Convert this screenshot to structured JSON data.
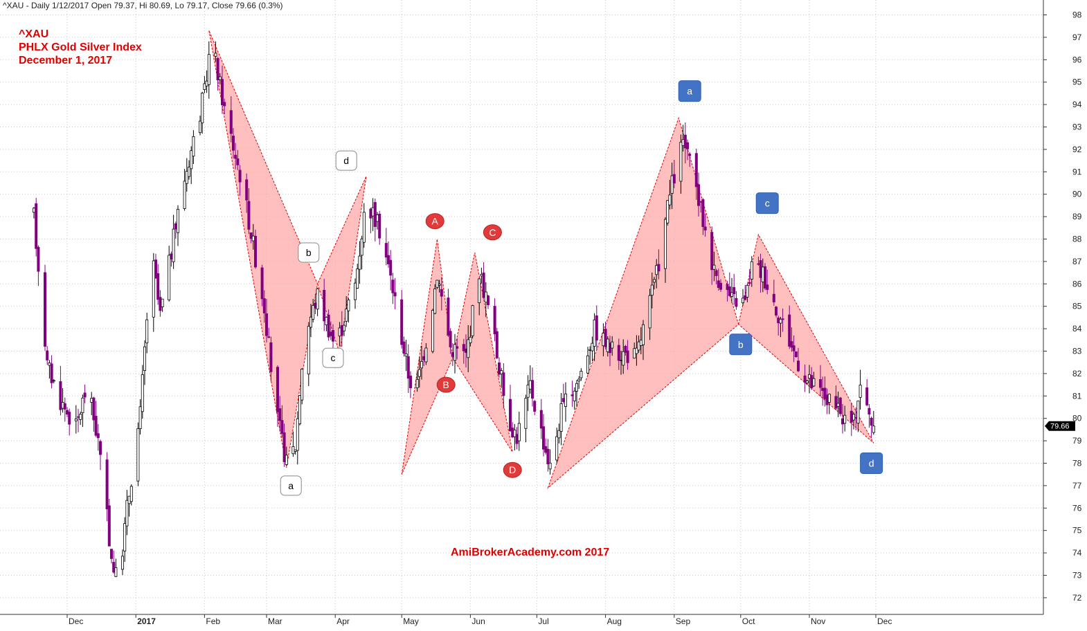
{
  "header": {
    "info": "^XAU - Daily 1/12/2017 Open 79.37, Hi 80.69, Lo 79.17, Close 79.66 (0.3%)"
  },
  "title_block": {
    "symbol": "^XAU",
    "name": "PHLX Gold Silver Index",
    "date": "December 1, 2017"
  },
  "watermark": "AmiBrokerAcademy.com  2017",
  "price_label": "79.66",
  "chart_data": {
    "type": "candlestick",
    "title": "",
    "xlabel": "",
    "ylabel": "",
    "ylim": [
      71.2,
      98.2
    ],
    "y_ticks": [
      72,
      73,
      74,
      75,
      76,
      77,
      78,
      79,
      80,
      81,
      82,
      83,
      84,
      85,
      86,
      87,
      88,
      89,
      90,
      91,
      92,
      93,
      94,
      95,
      96,
      97,
      98
    ],
    "x_ticks": [
      {
        "label": "Dec",
        "date": "2016-12-01"
      },
      {
        "label": "2017",
        "date": "2017-01-01",
        "bold": true
      },
      {
        "label": "Feb",
        "date": "2017-02-01"
      },
      {
        "label": "Mar",
        "date": "2017-03-01"
      },
      {
        "label": "Apr",
        "date": "2017-04-01"
      },
      {
        "label": "May",
        "date": "2017-05-01"
      },
      {
        "label": "Jun",
        "date": "2017-06-01"
      },
      {
        "label": "Jul",
        "date": "2017-07-01"
      },
      {
        "label": "Aug",
        "date": "2017-08-01"
      },
      {
        "label": "Sep",
        "date": "2017-09-01"
      },
      {
        "label": "Oct",
        "date": "2017-10-01"
      },
      {
        "label": "Nov",
        "date": "2017-11-01"
      },
      {
        "label": "Dec",
        "date": "2017-12-01"
      }
    ],
    "grid": true,
    "last_close": 79.66,
    "up_color": "#ffffff",
    "down_color": "#800080",
    "pattern_fill": "#ffaaaa",
    "pattern_line": "#e00000",
    "patterns": [
      {
        "name": "abcd-white",
        "points": [
          [
            "2017-02-03",
            97.3
          ],
          [
            "2017-03-10",
            77.8
          ],
          [
            "2017-03-24",
            86.0
          ],
          [
            "2017-04-03",
            82.9
          ],
          [
            "2017-04-15",
            90.8
          ]
        ]
      },
      {
        "name": "ABCD-red",
        "points": [
          [
            "2017-05-01",
            77.5
          ],
          [
            "2017-05-17",
            88.0
          ],
          [
            "2017-05-24",
            82.7
          ],
          [
            "2017-06-03",
            87.4
          ],
          [
            "2017-06-20",
            78.5
          ]
        ]
      },
      {
        "name": "abcd-blue",
        "points": [
          [
            "2017-07-06",
            76.9
          ],
          [
            "2017-09-03",
            93.4
          ],
          [
            "2017-09-30",
            84.2
          ],
          [
            "2017-10-09",
            88.2
          ],
          [
            "2017-11-30",
            78.9
          ]
        ]
      }
    ],
    "labels": [
      {
        "text": "a",
        "style": "white",
        "date": "2017-03-12",
        "value": 77.0
      },
      {
        "text": "b",
        "style": "white",
        "date": "2017-03-20",
        "value": 87.4
      },
      {
        "text": "c",
        "style": "white",
        "date": "2017-03-31",
        "value": 82.7
      },
      {
        "text": "d",
        "style": "white",
        "date": "2017-04-06",
        "value": 91.5
      },
      {
        "text": "A",
        "style": "red",
        "date": "2017-05-16",
        "value": 88.8
      },
      {
        "text": "B",
        "style": "red",
        "date": "2017-05-21",
        "value": 81.5
      },
      {
        "text": "C",
        "style": "red",
        "date": "2017-06-11",
        "value": 88.3
      },
      {
        "text": "D",
        "style": "red",
        "date": "2017-06-20",
        "value": 77.7
      },
      {
        "text": "a",
        "style": "blue",
        "date": "2017-09-08",
        "value": 94.6
      },
      {
        "text": "b",
        "style": "blue",
        "date": "2017-10-01",
        "value": 83.3
      },
      {
        "text": "c",
        "style": "blue",
        "date": "2017-10-13",
        "value": 89.6
      },
      {
        "text": "d",
        "style": "blue",
        "date": "2017-11-29",
        "value": 78.0
      }
    ],
    "waypoints": [
      [
        "2016-11-16",
        89.0
      ],
      [
        "2016-11-22",
        82.4
      ],
      [
        "2016-11-28",
        80.8
      ],
      [
        "2016-12-05",
        79.6
      ],
      [
        "2016-12-10",
        81.5
      ],
      [
        "2016-12-15",
        79.0
      ],
      [
        "2016-12-21",
        73.8
      ],
      [
        "2016-12-24",
        72.5
      ],
      [
        "2016-12-28",
        76.0
      ],
      [
        "2017-01-03",
        80.2
      ],
      [
        "2017-01-08",
        87.4
      ],
      [
        "2017-01-12",
        84.6
      ],
      [
        "2017-01-22",
        90.3
      ],
      [
        "2017-02-01",
        94.5
      ],
      [
        "2017-02-04",
        97.0
      ],
      [
        "2017-02-10",
        93.8
      ],
      [
        "2017-02-18",
        90.5
      ],
      [
        "2017-02-28",
        85.0
      ],
      [
        "2017-03-05",
        80.5
      ],
      [
        "2017-03-10",
        78.0
      ],
      [
        "2017-03-14",
        78.8
      ],
      [
        "2017-03-18",
        83.6
      ],
      [
        "2017-03-24",
        85.5
      ],
      [
        "2017-04-01",
        83.2
      ],
      [
        "2017-04-10",
        86.0
      ],
      [
        "2017-04-15",
        89.8
      ],
      [
        "2017-04-22",
        88.2
      ],
      [
        "2017-04-27",
        85.8
      ],
      [
        "2017-05-04",
        82.0
      ],
      [
        "2017-05-07",
        81.0
      ],
      [
        "2017-05-14",
        84.5
      ],
      [
        "2017-05-17",
        86.5
      ],
      [
        "2017-05-23",
        83.2
      ],
      [
        "2017-05-30",
        82.8
      ],
      [
        "2017-06-05",
        86.6
      ],
      [
        "2017-06-10",
        84.6
      ],
      [
        "2017-06-18",
        80.0
      ],
      [
        "2017-06-22",
        79.2
      ],
      [
        "2017-06-28",
        81.5
      ],
      [
        "2017-07-04",
        79.0
      ],
      [
        "2017-07-07",
        77.8
      ],
      [
        "2017-07-12",
        80.3
      ],
      [
        "2017-07-20",
        81.8
      ],
      [
        "2017-07-27",
        84.0
      ],
      [
        "2017-08-04",
        83.0
      ],
      [
        "2017-08-15",
        82.8
      ],
      [
        "2017-08-24",
        86.4
      ],
      [
        "2017-08-30",
        90.0
      ],
      [
        "2017-09-05",
        92.4
      ],
      [
        "2017-09-11",
        90.2
      ],
      [
        "2017-09-19",
        86.6
      ],
      [
        "2017-09-27",
        85.3
      ],
      [
        "2017-10-03",
        85.2
      ],
      [
        "2017-10-06",
        86.8
      ],
      [
        "2017-10-11",
        86.5
      ],
      [
        "2017-10-18",
        84.7
      ],
      [
        "2017-10-25",
        83.0
      ],
      [
        "2017-10-31",
        81.7
      ],
      [
        "2017-11-08",
        81.0
      ],
      [
        "2017-11-16",
        80.0
      ],
      [
        "2017-11-21",
        79.8
      ],
      [
        "2017-11-24",
        81.6
      ],
      [
        "2017-11-27",
        80.4
      ],
      [
        "2017-11-30",
        79.7
      ]
    ]
  }
}
